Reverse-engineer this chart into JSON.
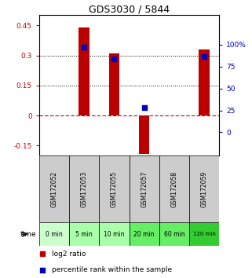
{
  "title": "GDS3030 / 5844",
  "samples": [
    "GSM172052",
    "GSM172053",
    "GSM172055",
    "GSM172057",
    "GSM172058",
    "GSM172059"
  ],
  "time_labels": [
    "0 min",
    "5 min",
    "10 min",
    "20 min",
    "60 min",
    "120 min"
  ],
  "log2_ratio": [
    0.0,
    0.44,
    0.31,
    -0.19,
    0.0,
    0.33
  ],
  "percentile_rank": [
    null,
    97,
    84,
    28,
    null,
    86
  ],
  "ylim_left": [
    -0.2,
    0.5
  ],
  "ylim_right": [
    -26.67,
    133.33
  ],
  "yticks_left": [
    -0.15,
    0.0,
    0.15,
    0.3,
    0.45
  ],
  "yticks_right": [
    0,
    25,
    50,
    75,
    100
  ],
  "bar_color": "#bb0000",
  "dot_color": "#0000bb",
  "bar_width": 0.35,
  "dotted_lines": [
    0.15,
    0.3
  ],
  "time_colors": [
    "#ccffcc",
    "#aaffaa",
    "#aaffaa",
    "#66ee66",
    "#66ee66",
    "#33cc33"
  ],
  "sample_bg_color": "#cccccc",
  "zero_line_color": "#cc0000",
  "legend_items": [
    {
      "label": "log2 ratio",
      "color": "#bb0000"
    },
    {
      "label": "percentile rank within the sample",
      "color": "#0000bb"
    }
  ]
}
